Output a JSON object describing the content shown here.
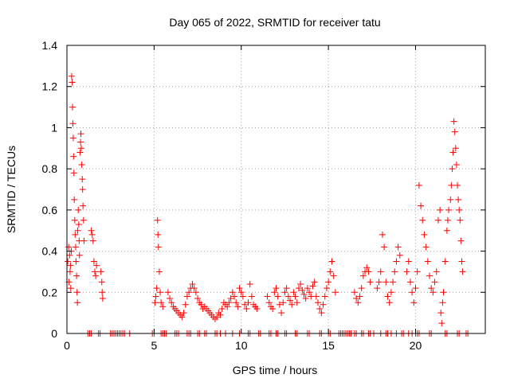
{
  "chart_data": {
    "type": "scatter",
    "title": "Day 065 of 2022, SRMTID for receiver tatu",
    "xlabel": "GPS time / hours",
    "ylabel": "SRMTID / TECUs",
    "xlim": [
      0,
      24
    ],
    "ylim": [
      0,
      1.4
    ],
    "x_ticks": [
      0,
      5,
      10,
      15,
      20
    ],
    "x_tick_labels": [
      "0",
      "5",
      "10",
      "15",
      "20"
    ],
    "y_ticks": [
      0,
      0.2,
      0.4,
      0.6,
      0.8,
      1.0,
      1.2,
      1.4
    ],
    "y_tick_labels": [
      "0",
      "0.2",
      "0.4",
      "0.6",
      "0.8",
      "1",
      "1.2",
      "1.4"
    ],
    "grid": true,
    "marker": "plus",
    "series": [
      {
        "name": "SRMTID",
        "color": "#ff0000",
        "points": [
          [
            0.05,
            0.35
          ],
          [
            0.1,
            0.42
          ],
          [
            0.12,
            0.25
          ],
          [
            0.15,
            0.38
          ],
          [
            0.18,
            0.3
          ],
          [
            0.2,
            0.33
          ],
          [
            0.22,
            0.22
          ],
          [
            0.25,
            0.4
          ],
          [
            0.27,
            1.25
          ],
          [
            0.3,
            1.22
          ],
          [
            0.32,
            1.1
          ],
          [
            0.34,
            1.02
          ],
          [
            0.36,
            0.95
          ],
          [
            0.38,
            0.86
          ],
          [
            0.4,
            0.78
          ],
          [
            0.42,
            0.65
          ],
          [
            0.45,
            0.55
          ],
          [
            0.47,
            0.48
          ],
          [
            0.5,
            0.42
          ],
          [
            0.52,
            0.35
          ],
          [
            0.55,
            0.28
          ],
          [
            0.58,
            0.2
          ],
          [
            0.6,
            0.15
          ],
          [
            0.62,
            0.5
          ],
          [
            0.65,
            0.6
          ],
          [
            0.68,
            0.53
          ],
          [
            0.7,
            0.45
          ],
          [
            0.72,
            0.38
          ],
          [
            0.75,
            0.88
          ],
          [
            0.78,
            0.93
          ],
          [
            0.8,
            0.97
          ],
          [
            0.82,
            0.9
          ],
          [
            0.85,
            0.82
          ],
          [
            0.88,
            0.75
          ],
          [
            0.9,
            0.7
          ],
          [
            0.92,
            0.62
          ],
          [
            0.95,
            0.55
          ],
          [
            0.98,
            0.45
          ],
          [
            1.4,
            0.5
          ],
          [
            1.45,
            0.48
          ],
          [
            1.5,
            0.45
          ],
          [
            1.55,
            0.35
          ],
          [
            1.6,
            0.3
          ],
          [
            1.65,
            0.28
          ],
          [
            1.7,
            0.33
          ],
          [
            1.95,
            0.3
          ],
          [
            2.0,
            0.25
          ],
          [
            2.02,
            0.2
          ],
          [
            2.05,
            0.17
          ],
          [
            5.05,
            0.15
          ],
          [
            5.1,
            0.18
          ],
          [
            5.15,
            0.22
          ],
          [
            5.2,
            0.55
          ],
          [
            5.22,
            0.48
          ],
          [
            5.25,
            0.42
          ],
          [
            5.3,
            0.3
          ],
          [
            5.35,
            0.2
          ],
          [
            5.4,
            0.15
          ],
          [
            5.5,
            0.13
          ],
          [
            5.8,
            0.2
          ],
          [
            5.9,
            0.17
          ],
          [
            6.0,
            0.15
          ],
          [
            6.1,
            0.13
          ],
          [
            6.2,
            0.12
          ],
          [
            6.3,
            0.11
          ],
          [
            6.4,
            0.1
          ],
          [
            6.5,
            0.09
          ],
          [
            6.6,
            0.08
          ],
          [
            6.7,
            0.1
          ],
          [
            6.8,
            0.14
          ],
          [
            6.9,
            0.18
          ],
          [
            7.0,
            0.2
          ],
          [
            7.1,
            0.22
          ],
          [
            7.2,
            0.24
          ],
          [
            7.3,
            0.22
          ],
          [
            7.4,
            0.2
          ],
          [
            7.5,
            0.17
          ],
          [
            7.6,
            0.15
          ],
          [
            7.7,
            0.14
          ],
          [
            7.8,
            0.12
          ],
          [
            7.9,
            0.13
          ],
          [
            8.0,
            0.12
          ],
          [
            8.1,
            0.11
          ],
          [
            8.2,
            0.1
          ],
          [
            8.3,
            0.09
          ],
          [
            8.4,
            0.08
          ],
          [
            8.5,
            0.07
          ],
          [
            8.6,
            0.08
          ],
          [
            8.7,
            0.1
          ],
          [
            8.8,
            0.09
          ],
          [
            8.9,
            0.12
          ],
          [
            9.0,
            0.15
          ],
          [
            9.1,
            0.14
          ],
          [
            9.2,
            0.13
          ],
          [
            9.3,
            0.15
          ],
          [
            9.4,
            0.17
          ],
          [
            9.5,
            0.2
          ],
          [
            9.6,
            0.18
          ],
          [
            9.7,
            0.15
          ],
          [
            9.8,
            0.13
          ],
          [
            9.9,
            0.22
          ],
          [
            10.0,
            0.2
          ],
          [
            10.1,
            0.18
          ],
          [
            10.2,
            0.14
          ],
          [
            10.3,
            0.12
          ],
          [
            10.4,
            0.15
          ],
          [
            10.5,
            0.24
          ],
          [
            10.6,
            0.18
          ],
          [
            10.7,
            0.14
          ],
          [
            10.8,
            0.13
          ],
          [
            10.9,
            0.12
          ],
          [
            11.5,
            0.18
          ],
          [
            11.6,
            0.15
          ],
          [
            11.7,
            0.13
          ],
          [
            11.8,
            0.12
          ],
          [
            11.9,
            0.2
          ],
          [
            12.0,
            0.22
          ],
          [
            12.1,
            0.18
          ],
          [
            12.2,
            0.14
          ],
          [
            12.3,
            0.1
          ],
          [
            12.4,
            0.15
          ],
          [
            12.5,
            0.2
          ],
          [
            12.6,
            0.22
          ],
          [
            12.7,
            0.18
          ],
          [
            12.8,
            0.16
          ],
          [
            12.9,
            0.14
          ],
          [
            13.0,
            0.2
          ],
          [
            13.1,
            0.18
          ],
          [
            13.2,
            0.15
          ],
          [
            13.3,
            0.22
          ],
          [
            13.4,
            0.24
          ],
          [
            13.5,
            0.21
          ],
          [
            13.6,
            0.19
          ],
          [
            13.7,
            0.17
          ],
          [
            13.8,
            0.22
          ],
          [
            13.9,
            0.2
          ],
          [
            14.0,
            0.18
          ],
          [
            14.1,
            0.23
          ],
          [
            14.2,
            0.25
          ],
          [
            14.3,
            0.18
          ],
          [
            14.4,
            0.15
          ],
          [
            14.5,
            0.12
          ],
          [
            14.6,
            0.1
          ],
          [
            14.7,
            0.14
          ],
          [
            14.8,
            0.18
          ],
          [
            14.9,
            0.22
          ],
          [
            15.0,
            0.25
          ],
          [
            15.1,
            0.3
          ],
          [
            15.2,
            0.35
          ],
          [
            15.3,
            0.28
          ],
          [
            15.4,
            0.2
          ],
          [
            16.5,
            0.2
          ],
          [
            16.6,
            0.17
          ],
          [
            16.7,
            0.15
          ],
          [
            16.8,
            0.18
          ],
          [
            16.9,
            0.22
          ],
          [
            17.0,
            0.28
          ],
          [
            17.1,
            0.3
          ],
          [
            17.2,
            0.32
          ],
          [
            17.3,
            0.3
          ],
          [
            17.4,
            0.25
          ],
          [
            17.8,
            0.22
          ],
          [
            17.9,
            0.25
          ],
          [
            18.0,
            0.3
          ],
          [
            18.1,
            0.48
          ],
          [
            18.2,
            0.42
          ],
          [
            18.3,
            0.25
          ],
          [
            18.4,
            0.18
          ],
          [
            18.5,
            0.15
          ],
          [
            18.6,
            0.2
          ],
          [
            18.7,
            0.25
          ],
          [
            18.8,
            0.3
          ],
          [
            18.9,
            0.35
          ],
          [
            19.0,
            0.42
          ],
          [
            19.1,
            0.38
          ],
          [
            19.5,
            0.3
          ],
          [
            19.6,
            0.35
          ],
          [
            19.7,
            0.25
          ],
          [
            19.8,
            0.2
          ],
          [
            19.9,
            0.15
          ],
          [
            20.0,
            0.22
          ],
          [
            20.1,
            0.3
          ],
          [
            20.2,
            0.72
          ],
          [
            20.3,
            0.62
          ],
          [
            20.4,
            0.55
          ],
          [
            20.5,
            0.48
          ],
          [
            20.6,
            0.42
          ],
          [
            20.7,
            0.35
          ],
          [
            20.8,
            0.28
          ],
          [
            20.9,
            0.22
          ],
          [
            21.0,
            0.2
          ],
          [
            21.1,
            0.25
          ],
          [
            21.2,
            0.3
          ],
          [
            21.3,
            0.55
          ],
          [
            21.4,
            0.6
          ],
          [
            21.45,
            0.1
          ],
          [
            21.5,
            0.05
          ],
          [
            21.55,
            0.15
          ],
          [
            21.6,
            0.2
          ],
          [
            21.7,
            0.35
          ],
          [
            21.8,
            0.5
          ],
          [
            21.85,
            0.55
          ],
          [
            21.9,
            0.6
          ],
          [
            22.0,
            0.65
          ],
          [
            22.05,
            0.72
          ],
          [
            22.1,
            0.8
          ],
          [
            22.15,
            0.88
          ],
          [
            22.2,
            1.03
          ],
          [
            22.25,
            0.98
          ],
          [
            22.3,
            0.9
          ],
          [
            22.35,
            0.82
          ],
          [
            22.4,
            0.72
          ],
          [
            22.45,
            0.65
          ],
          [
            22.5,
            0.6
          ],
          [
            22.55,
            0.55
          ],
          [
            22.6,
            0.45
          ],
          [
            22.65,
            0.35
          ],
          [
            22.7,
            0.3
          ]
        ],
        "zero_points": [
          1.2,
          1.3,
          1.4,
          1.8,
          1.9,
          2.5,
          2.6,
          2.7,
          2.8,
          2.9,
          3.0,
          3.1,
          3.2,
          3.3,
          3.6,
          4.9,
          5.0,
          5.4,
          5.5,
          5.6,
          5.7,
          6.2,
          6.3,
          6.4,
          6.9,
          7.0,
          7.1,
          7.5,
          7.6,
          7.9,
          8.0,
          8.5,
          8.6,
          8.8,
          9.1,
          9.5,
          9.9,
          10.4,
          10.5,
          11.0,
          11.1,
          11.6,
          11.7,
          12.0,
          12.1,
          12.5,
          12.6,
          13.1,
          13.2,
          13.8,
          13.9,
          14.5,
          14.6,
          15.0,
          15.1,
          15.6,
          15.7,
          15.8,
          15.9,
          16.0,
          16.1,
          16.2,
          16.3,
          16.5,
          16.6,
          16.9,
          17.0,
          17.3,
          17.4,
          17.6,
          18.0,
          18.3,
          18.4,
          18.6,
          18.9,
          19.2,
          19.3,
          19.6,
          19.8,
          20.0,
          20.1,
          20.2,
          20.8,
          20.9,
          21.7,
          21.8,
          22.4,
          22.5,
          22.9,
          23.0
        ]
      }
    ]
  }
}
